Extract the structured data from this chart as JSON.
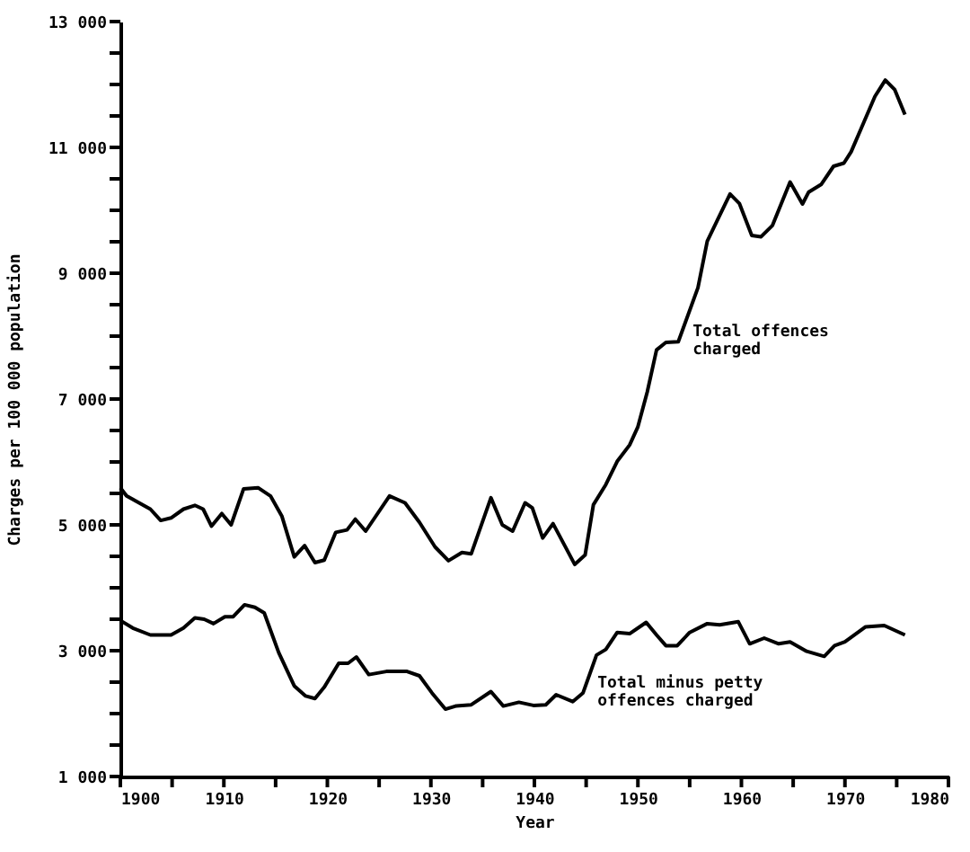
{
  "chart_data": {
    "type": "line",
    "xlabel": "Year",
    "ylabel": "Charges per 100 000 population",
    "xlim": [
      1900,
      1980
    ],
    "xticks": [
      1900,
      {
        "value": 1905,
        "label": null
      },
      1910,
      {
        "value": 1915,
        "label": null
      },
      1920,
      {
        "value": 1925,
        "label": null
      },
      1930,
      {
        "value": 1935,
        "label": null
      },
      1940,
      {
        "value": 1945,
        "label": null
      },
      1950,
      {
        "value": 1955,
        "label": null
      },
      1960,
      {
        "value": 1965,
        "label": null
      },
      1970,
      {
        "value": 1975,
        "label": null
      },
      1980
    ],
    "ylim": [
      1000,
      13000
    ],
    "yticks": [
      {
        "value": 1000,
        "label": "1 000"
      },
      {
        "value": 1500,
        "label": null
      },
      {
        "value": 2000,
        "label": null
      },
      {
        "value": 2500,
        "label": null
      },
      {
        "value": 3000,
        "label": "3 000"
      },
      {
        "value": 3500,
        "label": null
      },
      {
        "value": 4000,
        "label": null
      },
      {
        "value": 4500,
        "label": null
      },
      {
        "value": 5000,
        "label": "5 000"
      },
      {
        "value": 5500,
        "label": null
      },
      {
        "value": 6000,
        "label": null
      },
      {
        "value": 6500,
        "label": null
      },
      {
        "value": 7000,
        "label": "7 000"
      },
      {
        "value": 7500,
        "label": null
      },
      {
        "value": 8000,
        "label": null
      },
      {
        "value": 8500,
        "label": null
      },
      {
        "value": 9000,
        "label": "9 000"
      },
      {
        "value": 9500,
        "label": null
      },
      {
        "value": 10000,
        "label": null
      },
      {
        "value": 10500,
        "label": null
      },
      {
        "value": 11000,
        "label": "11 000"
      },
      {
        "value": 11500,
        "label": null
      },
      {
        "value": 12000,
        "label": null
      },
      {
        "value": 12500,
        "label": null
      },
      {
        "value": 13000,
        "label": "13 000"
      }
    ],
    "grid": false,
    "marker": "none",
    "line_style": "solid",
    "series": [
      {
        "color": "#000000",
        "x": [
          1900,
          1900.6,
          1902.9,
          1903.9,
          1904.9,
          1906.1,
          1907.2,
          1908,
          1908.8,
          1909.8,
          1910.7,
          1911.9,
          1913.3,
          1914.5,
          1915.6,
          1916.8,
          1917.8,
          1918.8,
          1919.7,
          1920.8,
          1921.9,
          1922.7,
          1923.7,
          1926,
          1927.5,
          1928.9,
          1930.4,
          1931.7,
          1933,
          1933.9,
          1935.8,
          1936.9,
          1937.9,
          1939.1,
          1939.8,
          1940.8,
          1941.8,
          1943.9,
          1944.9,
          1945.7,
          1946.9,
          1948,
          1949.2,
          1950,
          1950.9,
          1951.8,
          1952.7,
          1953.9,
          1955.8,
          1956.7,
          1958.9,
          1959.8,
          1961,
          1961.9,
          1963,
          1964.7,
          1965.9,
          1966.5,
          1967.7,
          1968.9,
          1969.9,
          1970.6,
          1971.8,
          1972.9,
          1973.9,
          1974.8,
          1975.8
        ],
        "values": [
          5590,
          5460,
          5250,
          5070,
          5110,
          5250,
          5310,
          5250,
          4980,
          5180,
          5000,
          5570,
          5590,
          5460,
          5140,
          4490,
          4670,
          4400,
          4440,
          4880,
          4920,
          5090,
          4900,
          5460,
          5350,
          5040,
          4650,
          4430,
          4560,
          4540,
          5430,
          5000,
          4900,
          5350,
          5270,
          4790,
          5020,
          4370,
          4520,
          5320,
          5640,
          6010,
          6270,
          6560,
          7110,
          7780,
          7900,
          7910,
          8770,
          9510,
          10260,
          10110,
          9600,
          9580,
          9760,
          10450,
          10100,
          10290,
          10410,
          10700,
          10750,
          10930,
          11390,
          11810,
          12070,
          11920,
          11520
        ]
      },
      {
        "color": "#000000",
        "x": [
          1900,
          1901.2,
          1902.9,
          1904.9,
          1906.1,
          1907.2,
          1908.1,
          1909,
          1910.1,
          1910.9,
          1912,
          1913,
          1913.9,
          1915.3,
          1916.8,
          1917.9,
          1918.8,
          1919.7,
          1921.1,
          1922,
          1922.8,
          1924,
          1925.7,
          1927.7,
          1928.9,
          1930.1,
          1931.4,
          1932.4,
          1933.9,
          1935.8,
          1937,
          1938.5,
          1939.9,
          1941.1,
          1942.1,
          1943.7,
          1944.7,
          1946,
          1946.9,
          1948,
          1949.2,
          1950.8,
          1951.8,
          1952.7,
          1953.8,
          1955,
          1956.7,
          1957.9,
          1959.7,
          1960.8,
          1962.2,
          1963.6,
          1964.7,
          1966.3,
          1968,
          1969,
          1970,
          1972,
          1973.8,
          1975.8
        ],
        "values": [
          3480,
          3360,
          3250,
          3250,
          3360,
          3520,
          3500,
          3430,
          3540,
          3540,
          3730,
          3690,
          3600,
          2970,
          2440,
          2280,
          2240,
          2420,
          2800,
          2800,
          2900,
          2620,
          2670,
          2670,
          2600,
          2330,
          2070,
          2120,
          2140,
          2350,
          2120,
          2180,
          2130,
          2140,
          2300,
          2190,
          2330,
          2930,
          3020,
          3290,
          3270,
          3450,
          3250,
          3080,
          3080,
          3290,
          3430,
          3410,
          3460,
          3110,
          3200,
          3110,
          3140,
          2990,
          2910,
          3080,
          3140,
          3380,
          3400,
          3250
        ]
      }
    ],
    "annotations": [
      {
        "text": "Total offences\ncharged",
        "x": 1953.9,
        "y": 7910
      },
      {
        "text": "Total minus petty\noffences charged",
        "x": 1944.7,
        "y": 2330
      }
    ]
  }
}
